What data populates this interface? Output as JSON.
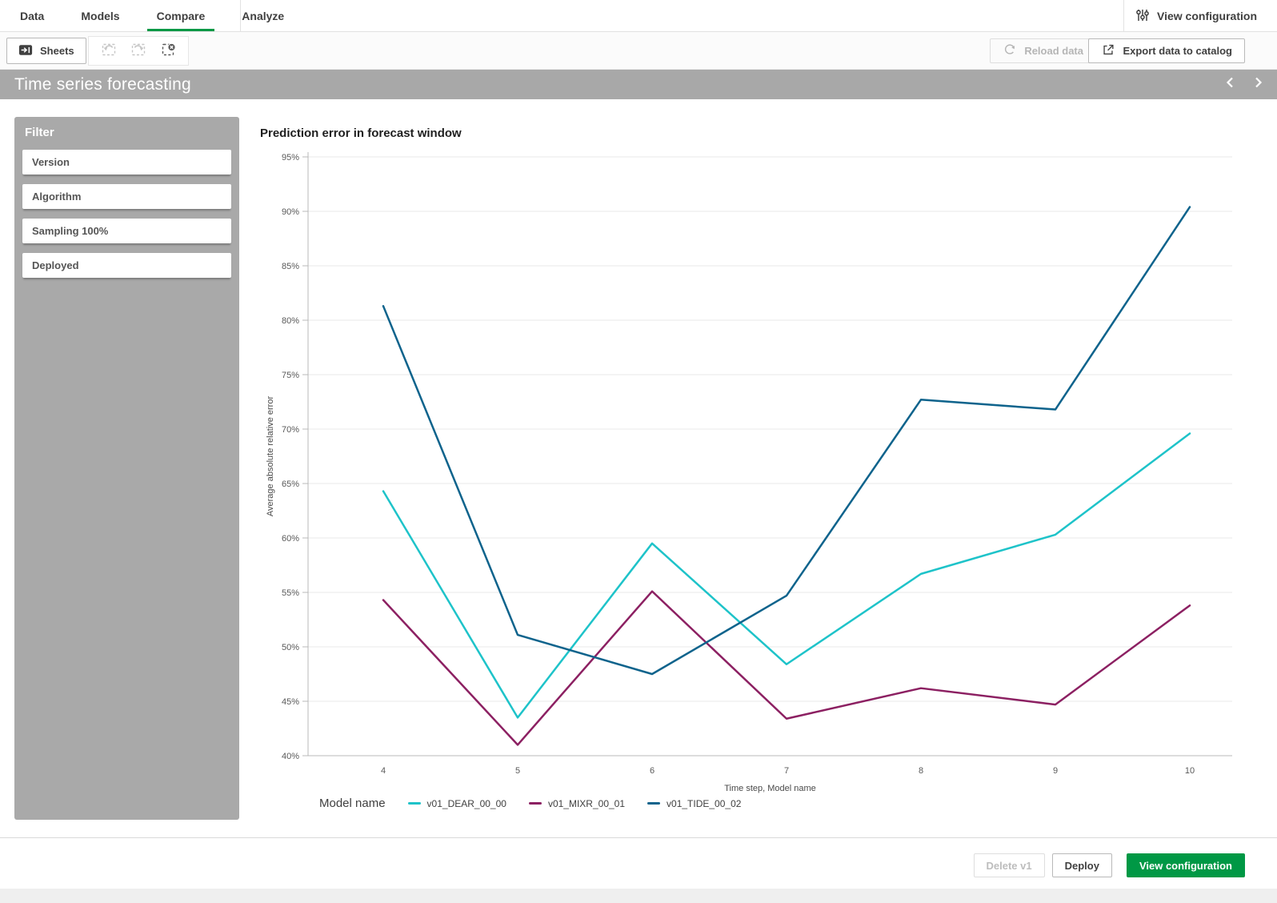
{
  "topnav": {
    "tabs": [
      {
        "label": "Data",
        "active": false
      },
      {
        "label": "Models",
        "active": false
      },
      {
        "label": "Compare",
        "active": true
      },
      {
        "label": "Analyze",
        "active": false
      }
    ],
    "view_configuration_label": "View configuration"
  },
  "toolbar": {
    "sheets_label": "Sheets",
    "reload_label": "Reload data",
    "export_label": "Export data to catalog"
  },
  "banner": {
    "title": "Time series forecasting"
  },
  "sidebar": {
    "title": "Filter",
    "items": [
      {
        "label": "Version"
      },
      {
        "label": "Algorithm"
      },
      {
        "label": "Sampling 100%"
      },
      {
        "label": "Deployed"
      }
    ]
  },
  "chart_data": {
    "type": "line",
    "title": "Prediction error in forecast window",
    "xlabel": "Time step, Model name",
    "ylabel": "Average absolute relative error",
    "x": [
      4,
      5,
      6,
      7,
      8,
      9,
      10
    ],
    "ylim": [
      40,
      95
    ],
    "y_tick_step": 5,
    "y_tick_format": "percent",
    "grid": true,
    "legend_title": "Model name",
    "legend_position": "bottom",
    "series": [
      {
        "name": "v01_DEAR_00_00",
        "color": "#1ec3c9",
        "values": [
          64.3,
          43.5,
          59.5,
          48.4,
          56.7,
          60.3,
          69.6
        ]
      },
      {
        "name": "v01_MIXR_00_01",
        "color": "#8c2062",
        "values": [
          54.3,
          41.0,
          55.1,
          43.4,
          46.2,
          44.7,
          53.8
        ]
      },
      {
        "name": "v01_TIDE_00_02",
        "color": "#0e638c",
        "values": [
          81.3,
          51.1,
          47.5,
          54.7,
          72.7,
          71.8,
          90.4
        ]
      }
    ]
  },
  "footer": {
    "delete_label": "Delete v1",
    "deploy_label": "Deploy",
    "view_configuration_label": "View configuration"
  },
  "colors": {
    "accent_green": "#009845",
    "banner_gray": "#a8a8a8",
    "sidebar_gray": "#a9a9a9",
    "gridline": "#e8e8e8",
    "axis": "#b9b9b9"
  },
  "icons": {
    "view_configuration": "sliders-icon",
    "sheets": "sheet-open-icon",
    "step_back": "dashed-undo-icon",
    "step_forward": "dashed-redo-icon",
    "clear_selections": "dashed-clear-icon",
    "reload": "refresh-icon",
    "export": "export-icon",
    "banner_prev": "chevron-left-icon",
    "banner_next": "chevron-right-icon"
  }
}
